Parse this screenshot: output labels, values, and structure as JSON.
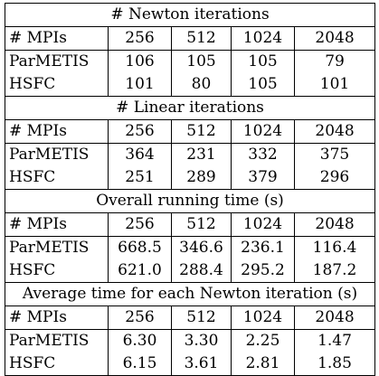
{
  "sections": [
    {
      "title": "# Newton iterations",
      "header": [
        "# MPIs",
        "256",
        "512",
        "1024",
        "2048"
      ],
      "rows": [
        [
          "ParMETIS",
          "106",
          "105",
          "105",
          "79"
        ],
        [
          "HSFC",
          "101",
          "80",
          "105",
          "101"
        ]
      ]
    },
    {
      "title": "# Linear iterations",
      "header": [
        "# MPIs",
        "256",
        "512",
        "1024",
        "2048"
      ],
      "rows": [
        [
          "ParMETIS",
          "364",
          "231",
          "332",
          "375"
        ],
        [
          "HSFC",
          "251",
          "289",
          "379",
          "296"
        ]
      ]
    },
    {
      "title": "Overall running time (s)",
      "header": [
        "# MPIs",
        "256",
        "512",
        "1024",
        "2048"
      ],
      "rows": [
        [
          "ParMETIS",
          "668.5",
          "346.6",
          "236.1",
          "116.4"
        ],
        [
          "HSFC",
          "621.0",
          "288.4",
          "295.2",
          "187.2"
        ]
      ]
    },
    {
      "title": "Average time for each Newton iteration (s)",
      "header": [
        "# MPIs",
        "256",
        "512",
        "1024",
        "2048"
      ],
      "rows": [
        [
          "ParMETIS",
          "6.30",
          "3.30",
          "2.25",
          "1.47"
        ],
        [
          "HSFC",
          "6.15",
          "3.61",
          "2.81",
          "1.85"
        ]
      ]
    }
  ]
}
